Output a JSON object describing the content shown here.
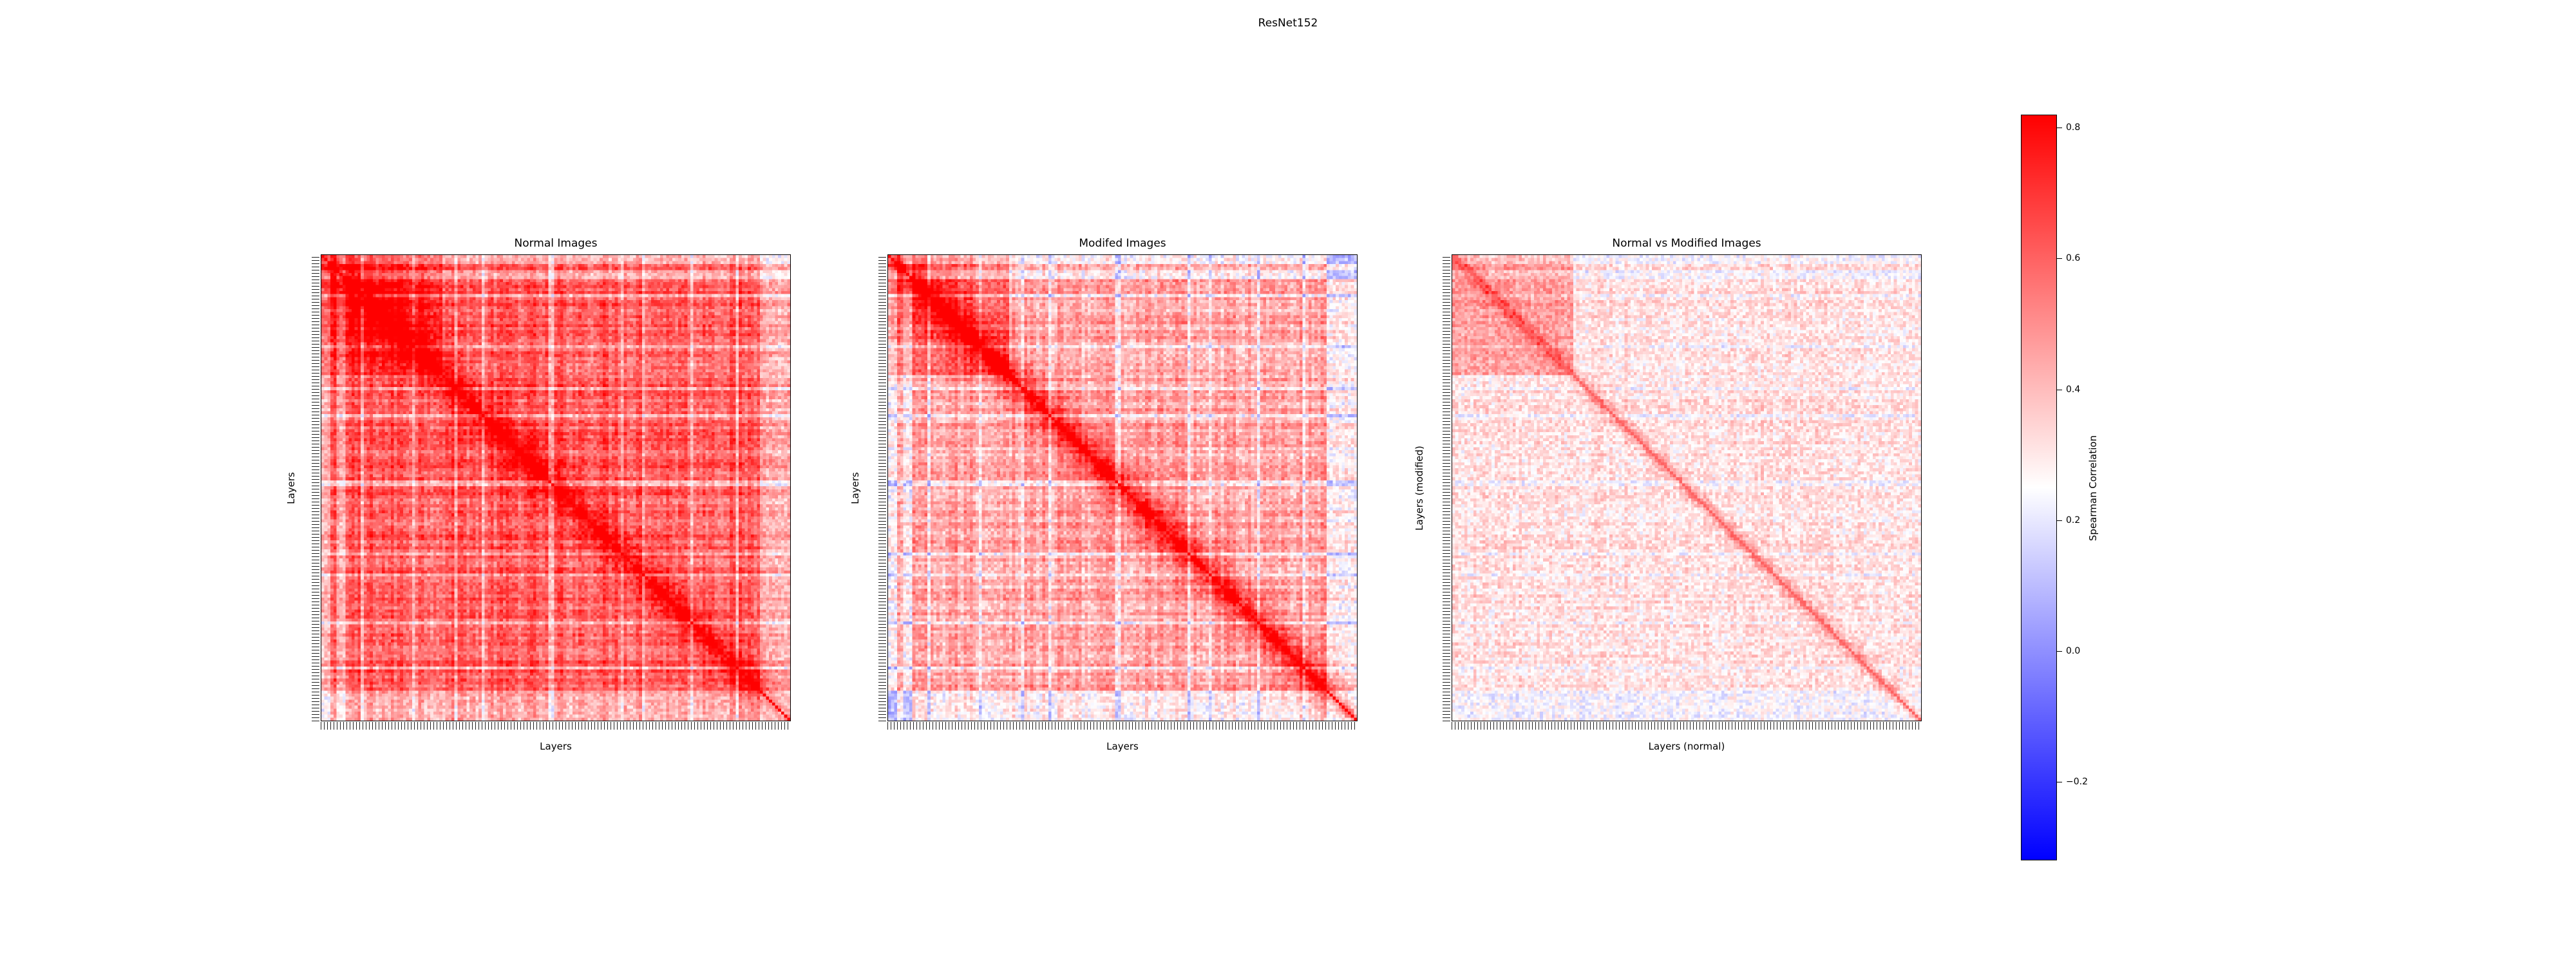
{
  "figure": {
    "title": "ResNet152"
  },
  "chart_data": [
    {
      "type": "heatmap",
      "title": "Normal Images",
      "xlabel": "Layers",
      "ylabel": "Layers",
      "n_layers": 155,
      "diagonal_value": 0.82,
      "pattern": "symmetric, strong red block structure, blue bands near first rows/cols and bottom rows"
    },
    {
      "type": "heatmap",
      "title": "Modifed Images",
      "xlabel": "Layers",
      "ylabel": "Layers",
      "n_layers": 155,
      "diagonal_value": 0.82,
      "pattern": "symmetric, weaker red, more blue stripes"
    },
    {
      "type": "heatmap",
      "title": "Normal vs Modified Images",
      "xlabel": "Layers (normal)",
      "ylabel": "Layers (modified)",
      "n_layers": 155,
      "diagonal_value": 0.6,
      "pattern": "mostly pale, light red diagonal, red top-left block"
    }
  ],
  "colorbar": {
    "label": "Spearman Correlation",
    "vmin": -0.32,
    "vmax": 0.82,
    "colormap": "bwr",
    "ticks": [
      "0.8",
      "0.6",
      "0.4",
      "0.2",
      "0.0",
      "−0.2"
    ],
    "tick_values": [
      0.8,
      0.6,
      0.4,
      0.2,
      0.0,
      -0.2
    ]
  }
}
